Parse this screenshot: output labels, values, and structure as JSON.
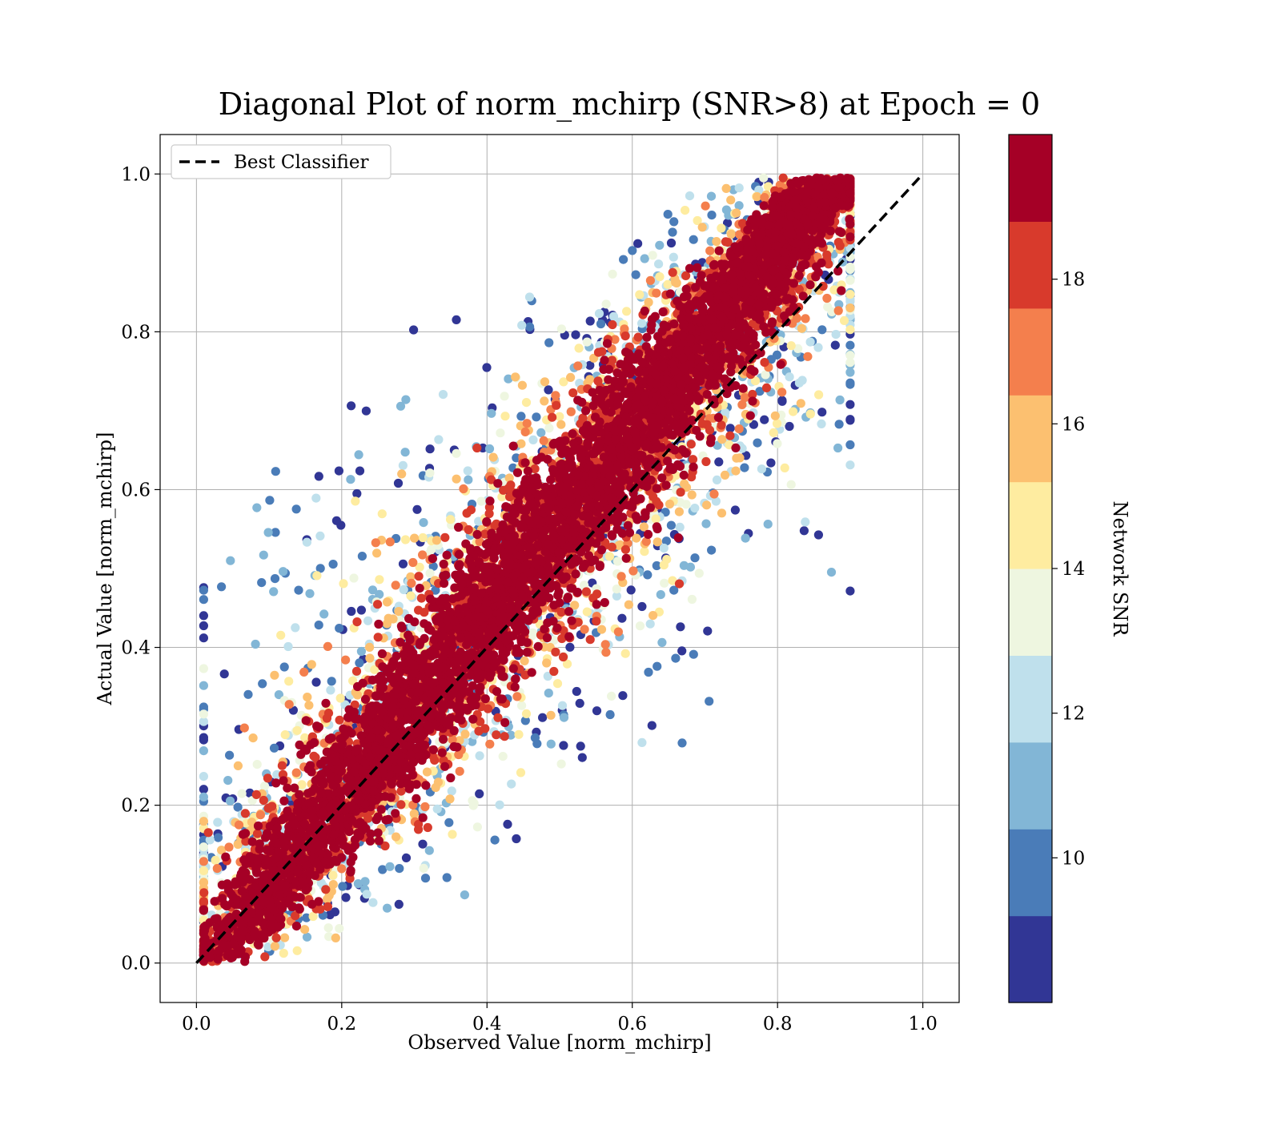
{
  "chart_data": {
    "type": "scatter",
    "title": "Diagonal Plot of norm_mchirp (SNR>8) at Epoch = 0",
    "xlabel": "Observed Value [norm_mchirp]",
    "ylabel": "Actual Value [norm_mchirp]",
    "xlim": [
      -0.05,
      1.05
    ],
    "ylim": [
      -0.05,
      1.05
    ],
    "xticks": [
      "0.0",
      "0.2",
      "0.4",
      "0.6",
      "0.8",
      "1.0"
    ],
    "yticks": [
      "0.0",
      "0.2",
      "0.4",
      "0.6",
      "0.8",
      "1.0"
    ],
    "grid": true,
    "legend": {
      "position": "top-left",
      "entries": [
        {
          "label": "Best Classifier",
          "style": "dashed",
          "color": "#000000"
        }
      ]
    },
    "reference_line": {
      "label": "Best Classifier",
      "x": [
        0,
        1
      ],
      "y": [
        0,
        1
      ]
    },
    "colorbar": {
      "label": "Network SNR",
      "range": [
        8,
        20
      ],
      "ticks": [
        "10",
        "12",
        "14",
        "16",
        "18"
      ],
      "colors": [
        "#313695",
        "#4575b4",
        "#74add1",
        "#abd9e9",
        "#e0f3f8",
        "#ffffbf",
        "#fee090",
        "#fdae61",
        "#f46d43",
        "#d73027",
        "#a50026"
      ],
      "bands": [
        "#313695",
        "#4a7cb8",
        "#82b6d6",
        "#bfe0ec",
        "#eef6e0",
        "#feeca0",
        "#fcc070",
        "#f47f4d",
        "#d83a2c",
        "#a50026"
      ]
    },
    "series_description_values": {
      "point_count_approx": "many thousands",
      "distribution": "points scattered around diagonal y=x; high SNR (>18) points tightly clustered near the diagonal, low SNR (8-12) points scattered further away"
    }
  }
}
